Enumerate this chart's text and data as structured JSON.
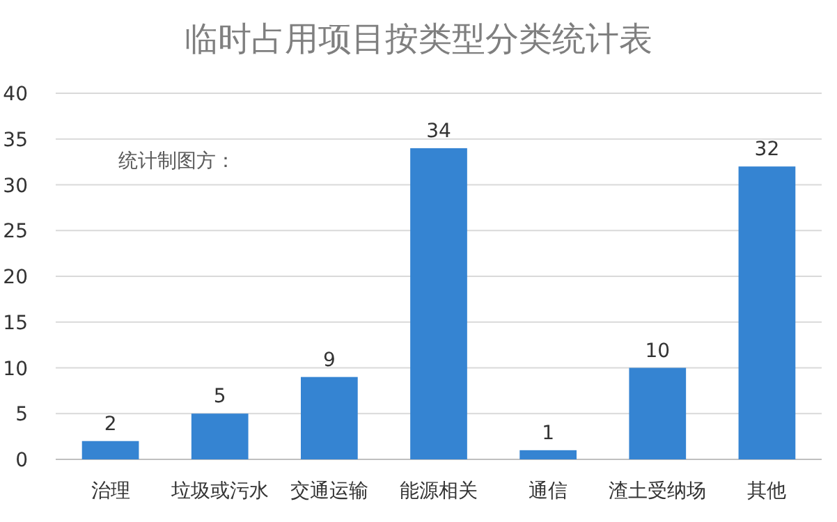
{
  "chart_data": {
    "type": "bar",
    "title": "临时占用项目按类型分类统计表",
    "categories": [
      "治理",
      "垃圾或污水",
      "交通运输",
      "能源相关",
      "通信",
      "渣土受纳场",
      "其他"
    ],
    "values": [
      2,
      5,
      9,
      34,
      1,
      10,
      32
    ],
    "color": "#3584d2",
    "ylim": [
      0,
      40
    ],
    "yticks": [
      0,
      5,
      10,
      15,
      20,
      25,
      30,
      35,
      40
    ],
    "grid": "y",
    "data_labels": true,
    "annotations": [
      "统计制图方："
    ]
  }
}
